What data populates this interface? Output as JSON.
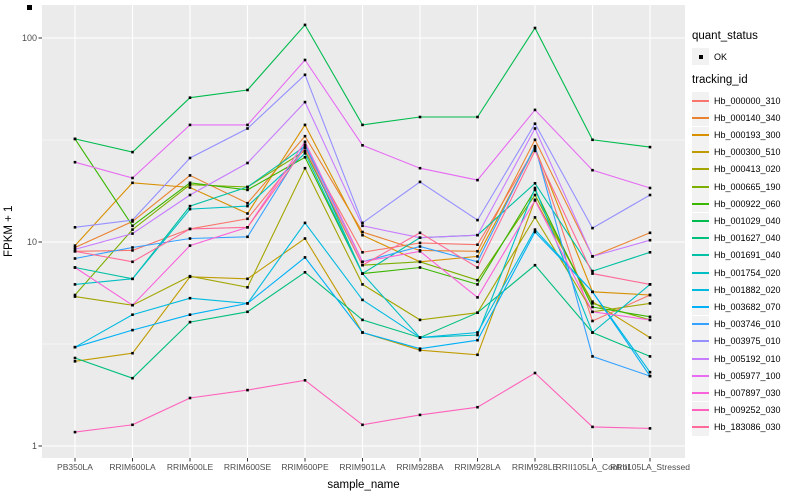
{
  "figure": {
    "bg": "#FFFFFF",
    "panel_bg": "#EBEBEB",
    "grid_color": "#FFFFFF",
    "tick_color": "#333333",
    "tick_label_color": "#4D4D4D",
    "point_color": "#000000"
  },
  "y_axis": {
    "title": "FPKM + 1",
    "ticks": [
      {
        "label": "1",
        "v": 1
      },
      {
        "label": "10",
        "v": 10
      },
      {
        "label": "100",
        "v": 100
      }
    ],
    "minor": [
      3.1623,
      31.6228
    ]
  },
  "x_axis": {
    "title": "sample_name"
  },
  "legend": {
    "quant_status": {
      "title": "quant_status",
      "items": [
        {
          "label": "OK",
          "symbol": "point"
        }
      ]
    },
    "tracking_id": {
      "title": "tracking_id"
    }
  },
  "chart_data": {
    "type": "line",
    "title": "",
    "xlabel": "sample_name",
    "ylabel": "FPKM + 1",
    "yscale": "log10",
    "ylim": [
      0.87,
      145
    ],
    "grid": true,
    "legend_position": "right",
    "x": [
      "PB350LA",
      "RRIM600LA",
      "RRIM600LE",
      "RRIM600SE",
      "RRIM600PE",
      "RRIM901LA",
      "RRIM928BA",
      "RRIM928LA",
      "RRIM928LE",
      "RRII105LA_Control",
      "RRII105LA_Stressed"
    ],
    "series": [
      {
        "name": "Hb_000000_310",
        "color": "#F8766D",
        "values": [
          9.0,
          9.1,
          11.6,
          13.0,
          29.0,
          8.9,
          9.9,
          9.7,
          28.8,
          4.1,
          5.5
        ]
      },
      {
        "name": "Hb_000140_340",
        "color": "#EA8331",
        "values": [
          9.4,
          12.6,
          21.2,
          15.5,
          33.0,
          11.2,
          9.1,
          9.0,
          31.7,
          8.5,
          11.1
        ]
      },
      {
        "name": "Hb_000193_300",
        "color": "#D89000",
        "values": [
          9.6,
          19.5,
          18.5,
          13.8,
          37.5,
          10.8,
          8.0,
          8.5,
          29.0,
          5.7,
          5.5
        ]
      },
      {
        "name": "Hb_000300_510",
        "color": "#C09B00",
        "values": [
          2.6,
          2.85,
          6.75,
          6.6,
          10.4,
          3.6,
          2.95,
          2.8,
          16.1,
          5.1,
          3.4
        ]
      },
      {
        "name": "Hb_000413_020",
        "color": "#A3A500",
        "values": [
          5.4,
          4.9,
          6.8,
          6.0,
          23.0,
          6.2,
          4.15,
          4.5,
          13.2,
          4.55,
          5.0
        ]
      },
      {
        "name": "Hb_000665_190",
        "color": "#7CAE00",
        "values": [
          5.5,
          11.5,
          19.1,
          18.6,
          28.0,
          7.7,
          8.0,
          6.5,
          17.0,
          5.0,
          4.15
        ]
      },
      {
        "name": "Hb_000922_060",
        "color": "#39B600",
        "values": [
          32.0,
          12.0,
          19.5,
          18.0,
          26.0,
          7.0,
          7.5,
          6.2,
          18.0,
          4.8,
          4.3
        ]
      },
      {
        "name": "Hb_001029_040",
        "color": "#00BB4E",
        "values": [
          32.0,
          27.6,
          51.0,
          55.6,
          116.0,
          37.5,
          41.0,
          41.0,
          112.0,
          31.7,
          29.2
        ]
      },
      {
        "name": "Hb_001627_040",
        "color": "#00BF7D",
        "values": [
          2.7,
          2.15,
          4.05,
          4.55,
          7.1,
          4.15,
          3.4,
          4.5,
          7.7,
          3.6,
          2.75
        ]
      },
      {
        "name": "Hb_001691_040",
        "color": "#00C1A3",
        "values": [
          7.5,
          6.6,
          15.0,
          18.6,
          29.5,
          7.0,
          10.5,
          10.8,
          19.4,
          7.2,
          8.9
        ]
      },
      {
        "name": "Hb_001754_020",
        "color": "#00BFC4",
        "values": [
          6.2,
          6.6,
          14.5,
          15.0,
          27.2,
          7.0,
          3.4,
          3.5,
          18.4,
          3.6,
          6.2
        ]
      },
      {
        "name": "Hb_001882_020",
        "color": "#00BAE0",
        "values": [
          3.05,
          4.4,
          5.3,
          5.0,
          12.4,
          5.2,
          3.4,
          3.6,
          11.5,
          5.7,
          2.3
        ]
      },
      {
        "name": "Hb_003682_070",
        "color": "#00B0F6",
        "values": [
          3.05,
          3.7,
          4.4,
          5.0,
          8.4,
          3.6,
          3.0,
          3.3,
          11.2,
          5.7,
          2.2
        ]
      },
      {
        "name": "Hb_003746_010",
        "color": "#35A2FF",
        "values": [
          8.3,
          9.4,
          10.4,
          10.6,
          30.0,
          8.0,
          9.5,
          8.0,
          29.5,
          2.75,
          2.2
        ]
      },
      {
        "name": "Hb_003975_010",
        "color": "#9590FF",
        "values": [
          11.8,
          12.8,
          25.8,
          36.0,
          66.0,
          12.4,
          19.7,
          12.8,
          38.0,
          11.7,
          17.0
        ]
      },
      {
        "name": "Hb_005192_010",
        "color": "#C77CFF",
        "values": [
          9.2,
          11.0,
          17.0,
          24.4,
          48.5,
          12.0,
          10.5,
          10.8,
          36.0,
          8.5,
          10.2
        ]
      },
      {
        "name": "Hb_005977_100",
        "color": "#E76BF3",
        "values": [
          24.6,
          20.6,
          37.5,
          37.5,
          78.0,
          29.8,
          23.0,
          20.1,
          44.4,
          22.5,
          18.4
        ]
      },
      {
        "name": "Hb_007897_030",
        "color": "#FA62DB",
        "values": [
          7.5,
          4.9,
          9.6,
          11.8,
          31.0,
          8.0,
          9.0,
          5.35,
          16.0,
          4.55,
          4.15
        ]
      },
      {
        "name": "Hb_009252_030",
        "color": "#FF62BC",
        "values": [
          1.17,
          1.27,
          1.72,
          1.88,
          2.1,
          1.27,
          1.42,
          1.55,
          2.28,
          1.24,
          1.22
        ]
      },
      {
        "name": "Hb_183086_030",
        "color": "#FF6A98",
        "values": [
          9.0,
          8.0,
          11.6,
          11.8,
          29.0,
          7.7,
          11.1,
          7.5,
          28.0,
          7.0,
          6.2
        ]
      }
    ]
  }
}
